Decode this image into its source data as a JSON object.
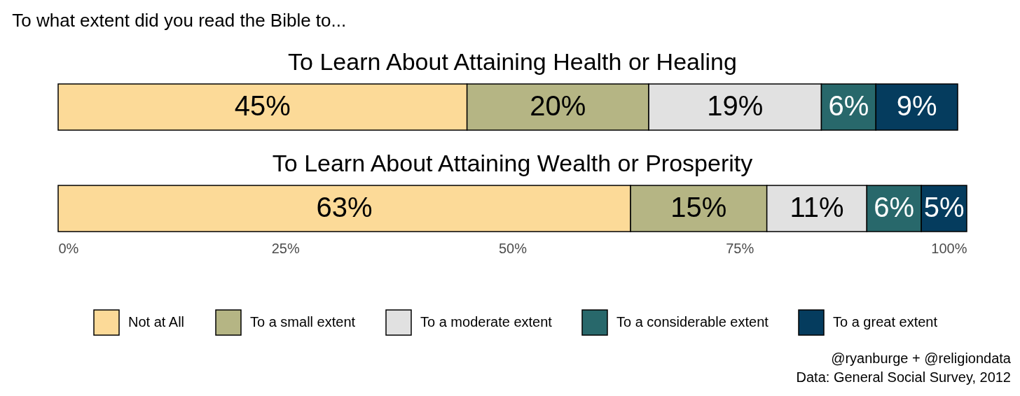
{
  "chart_data": {
    "type": "bar",
    "orientation": "horizontal",
    "stacked": true,
    "title": "To what extent did you read the Bible to...",
    "categories": [
      "To Learn About Attaining Health or Healing",
      "To Learn About Attaining Wealth or Prosperity"
    ],
    "series": [
      {
        "name": "Not at All",
        "color": "#fcda98",
        "values": [
          45,
          63
        ],
        "value_labels": [
          "45%",
          "63%"
        ]
      },
      {
        "name": "To a small extent",
        "color": "#b5b584",
        "values": [
          20,
          15
        ],
        "value_labels": [
          "20%",
          "15%"
        ]
      },
      {
        "name": "To a moderate extent",
        "color": "#e1e1e1",
        "values": [
          19,
          11
        ],
        "value_labels": [
          "19%",
          "11%"
        ]
      },
      {
        "name": "To a considerable extent",
        "color": "#28686b",
        "values": [
          6,
          6
        ],
        "value_labels": [
          "6%",
          "6%"
        ]
      },
      {
        "name": "To a great extent",
        "color": "#053c5e",
        "values": [
          9,
          5
        ],
        "value_labels": [
          "9%",
          "5%"
        ]
      }
    ],
    "xlim": [
      0,
      100
    ],
    "xticks": [
      {
        "value": 0,
        "label": "0%"
      },
      {
        "value": 25,
        "label": "25%"
      },
      {
        "value": 50,
        "label": "50%"
      },
      {
        "value": 75,
        "label": "75%"
      },
      {
        "value": 100,
        "label": "100%"
      }
    ],
    "grid": false,
    "legend": "bottom",
    "annotations": [
      "@ryanburge + @religiondata",
      "Data: General Social Survey, 2012"
    ]
  }
}
